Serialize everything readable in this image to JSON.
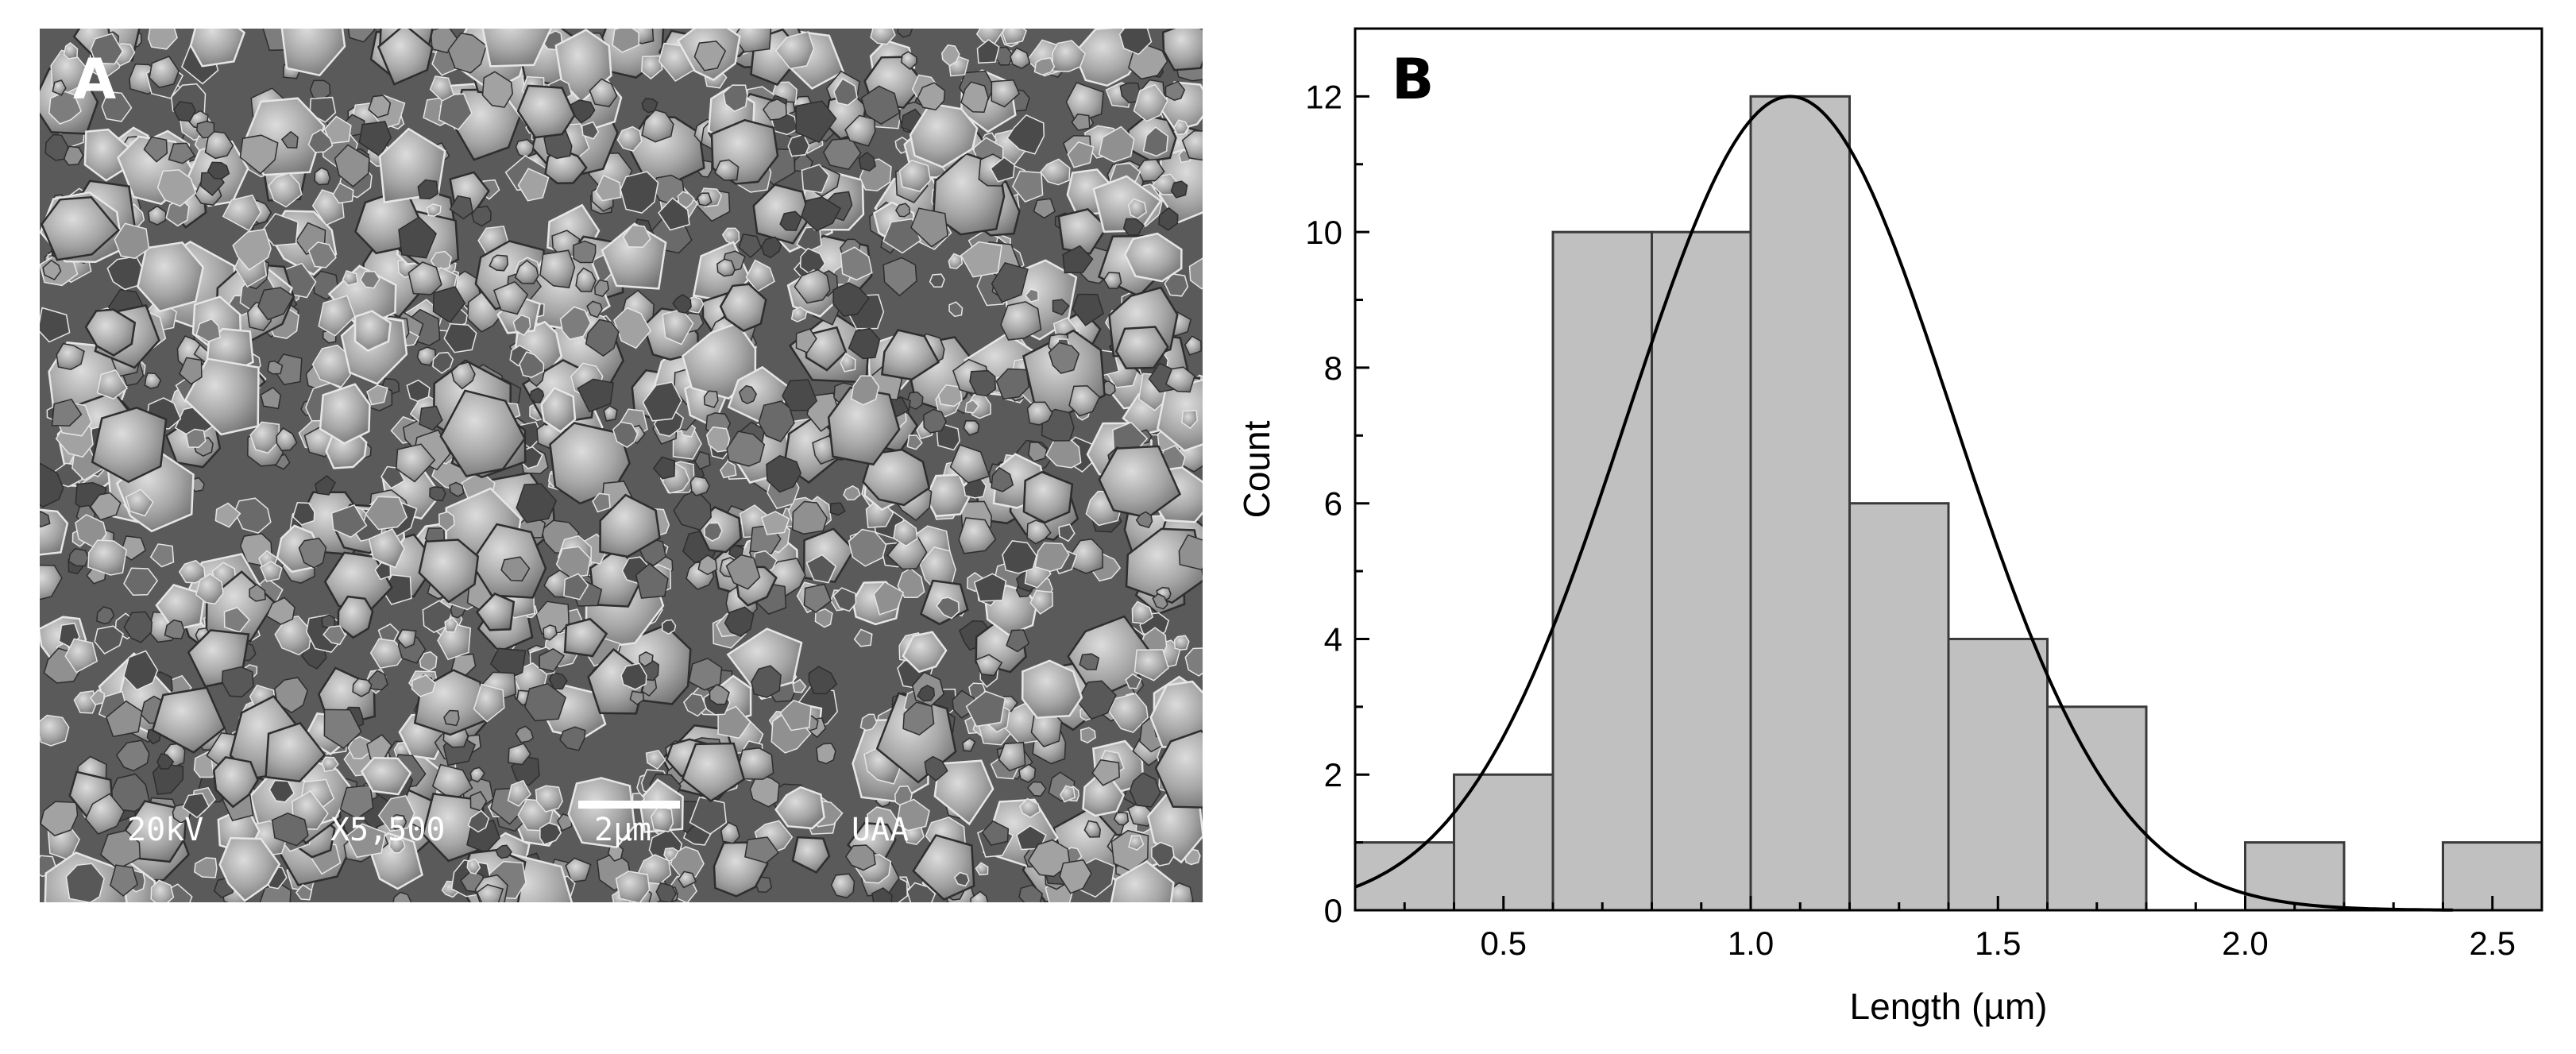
{
  "panels": {
    "a": {
      "label": "A"
    },
    "b": {
      "label": "B"
    }
  },
  "sem": {
    "voltage": "20kV",
    "magnification": "X5,500",
    "scale_bar": "2µm",
    "lab": "UAA"
  },
  "colors": {
    "bar_fill": "#c0c0c0",
    "bar_edge": "#3a3a3a",
    "curve": "#000000",
    "sem_background": "#5a5a5a"
  },
  "chart_data": {
    "type": "bar",
    "subtype": "histogram",
    "xlabel": "Length (µm)",
    "ylabel": "Count",
    "xlim": [
      0.2,
      2.6
    ],
    "ylim": [
      0,
      13
    ],
    "bin_width": 0.2,
    "bins": [
      {
        "start": 0.2,
        "end": 0.4,
        "count": 1
      },
      {
        "start": 0.4,
        "end": 0.6,
        "count": 2
      },
      {
        "start": 0.6,
        "end": 0.8,
        "count": 10
      },
      {
        "start": 0.8,
        "end": 1.0,
        "count": 10
      },
      {
        "start": 1.0,
        "end": 1.2,
        "count": 12
      },
      {
        "start": 1.2,
        "end": 1.4,
        "count": 6
      },
      {
        "start": 1.4,
        "end": 1.6,
        "count": 4
      },
      {
        "start": 1.6,
        "end": 1.8,
        "count": 3
      },
      {
        "start": 1.8,
        "end": 2.0,
        "count": 0
      },
      {
        "start": 2.0,
        "end": 2.2,
        "count": 1
      },
      {
        "start": 2.2,
        "end": 2.4,
        "count": 0
      },
      {
        "start": 2.4,
        "end": 2.6,
        "count": 1
      }
    ],
    "x_ticks": [
      "0.5",
      "1.0",
      "1.5",
      "2.0",
      "2.5"
    ],
    "x_tick_values": [
      0.5,
      1.0,
      1.5,
      2.0,
      2.5
    ],
    "y_ticks": [
      "0",
      "2",
      "4",
      "6",
      "8",
      "10",
      "12"
    ],
    "y_tick_values": [
      0,
      2,
      4,
      6,
      8,
      10,
      12
    ],
    "fit_curve": {
      "type": "normal",
      "mean": 1.08,
      "sigma": 0.33,
      "peak": 12.0,
      "x_range": [
        0.2,
        2.42
      ]
    },
    "grid": false,
    "legend": "none"
  }
}
